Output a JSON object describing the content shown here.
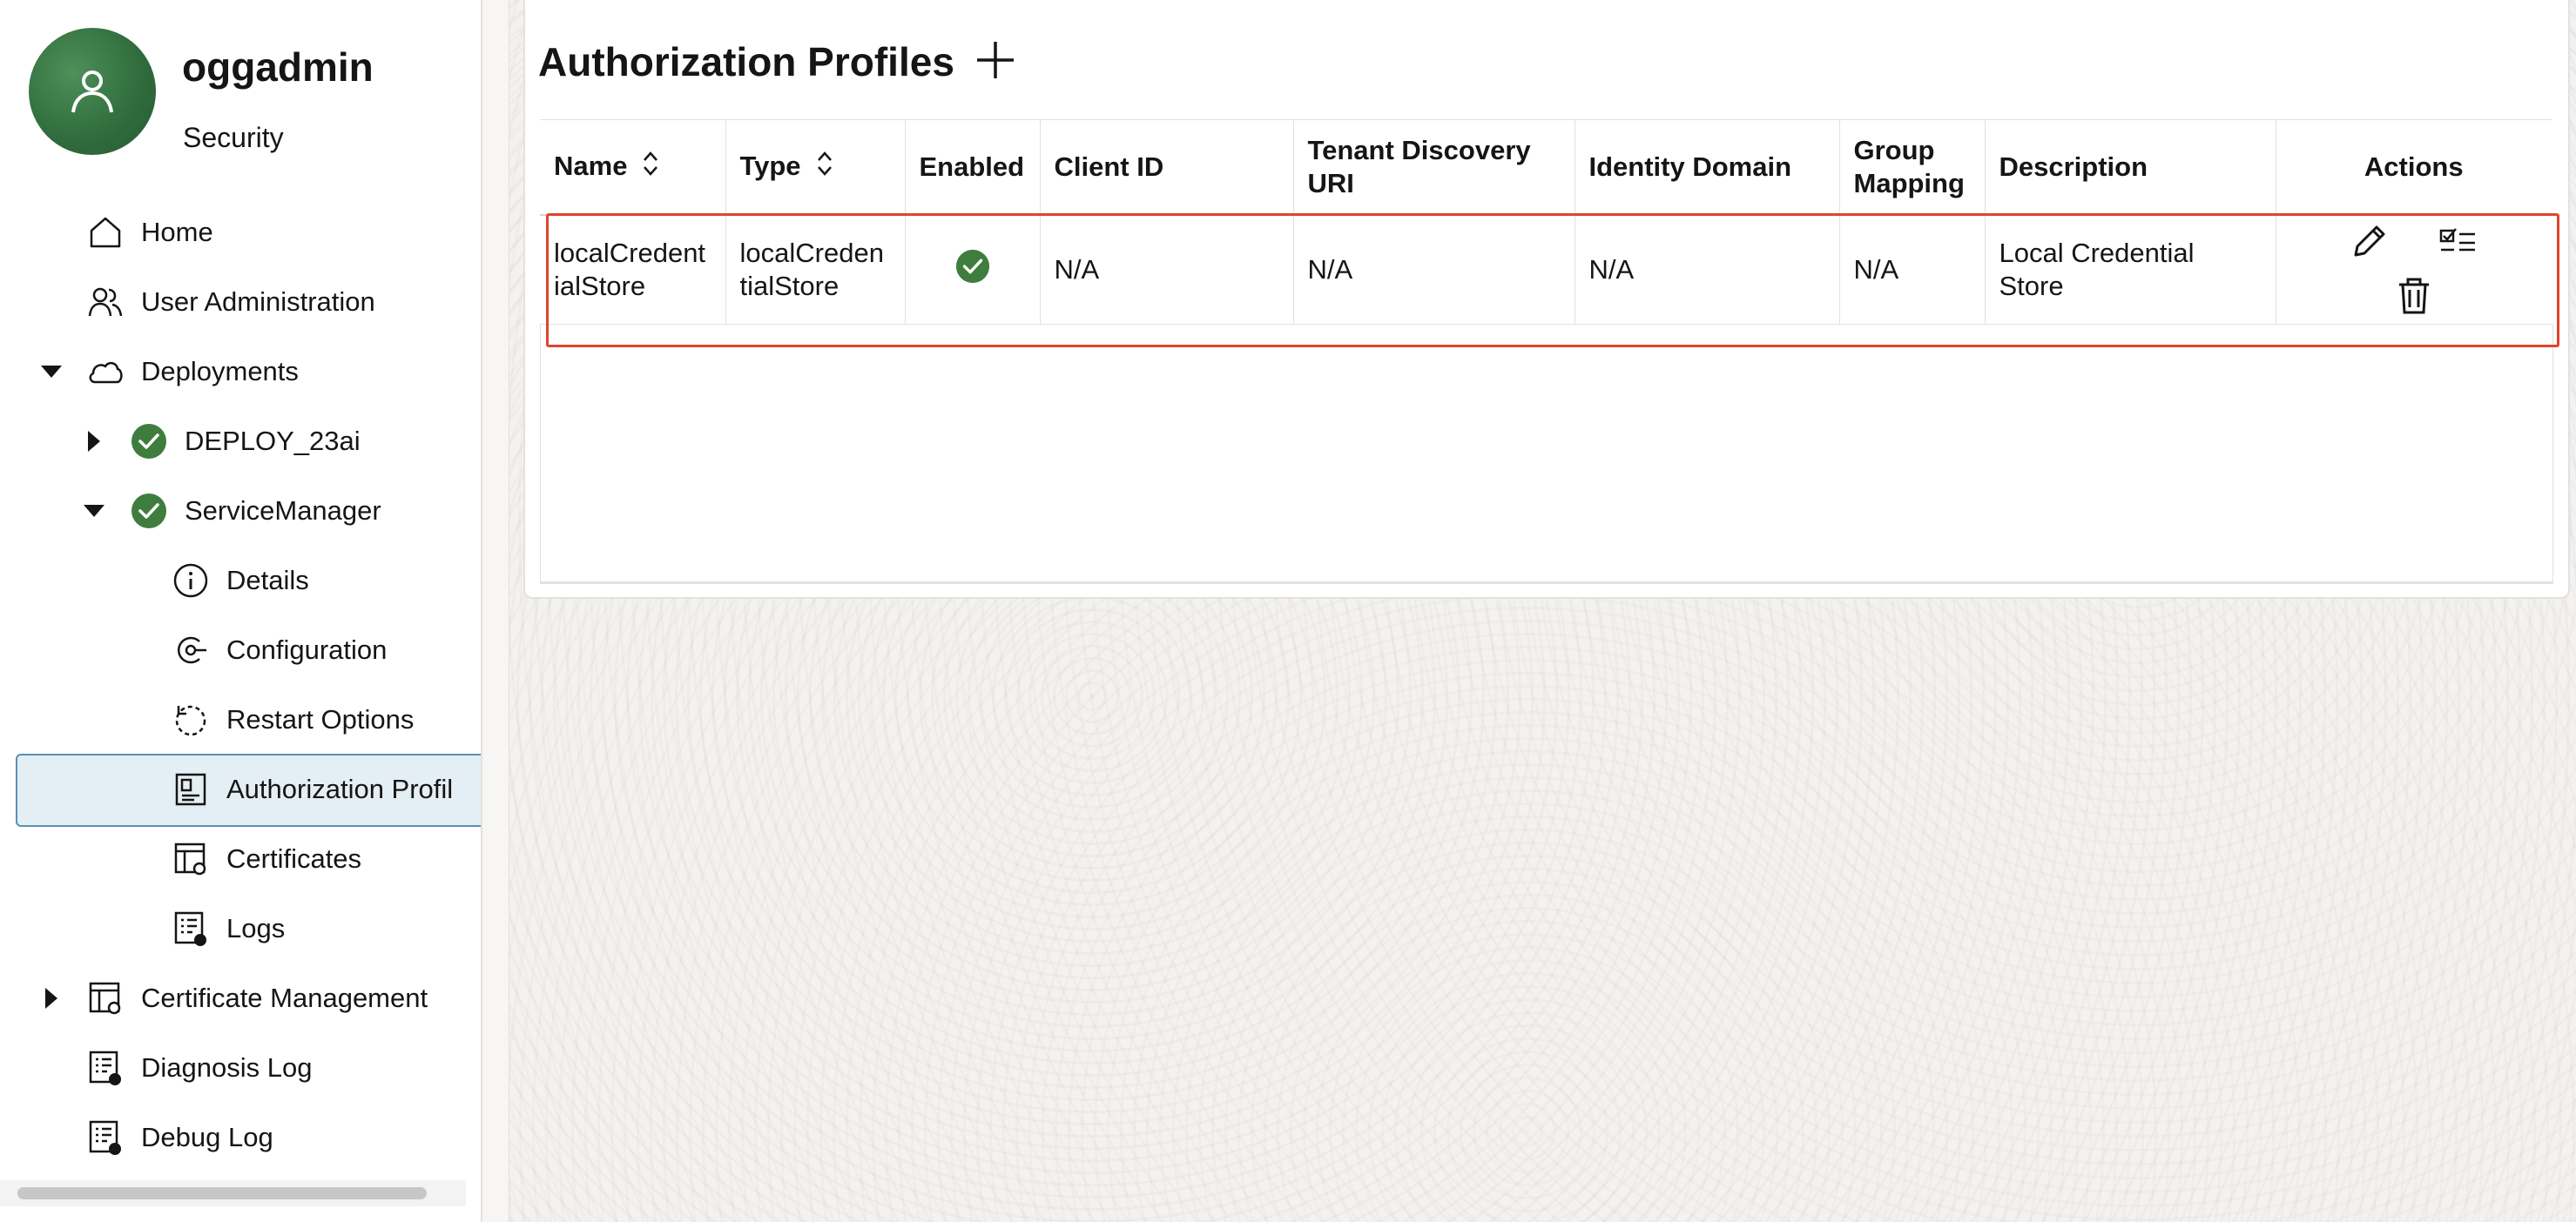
{
  "sidebar": {
    "user": {
      "name": "oggadmin",
      "role": "Security"
    },
    "items": [
      {
        "label": "Home",
        "icon": "home-icon"
      },
      {
        "label": "User Administration",
        "icon": "users-icon"
      },
      {
        "label": "Deployments",
        "icon": "cloud-icon"
      },
      {
        "label": "DEPLOY_23ai",
        "icon": "check-circle-icon"
      },
      {
        "label": "ServiceManager",
        "icon": "check-circle-icon"
      },
      {
        "label": "Details",
        "icon": "info-icon"
      },
      {
        "label": "Configuration",
        "icon": "configuration-icon"
      },
      {
        "label": "Restart Options",
        "icon": "restart-icon"
      },
      {
        "label": "Authorization Profil",
        "icon": "authorization-icon"
      },
      {
        "label": "Certificates",
        "icon": "certificate-icon"
      },
      {
        "label": "Logs",
        "icon": "log-icon"
      },
      {
        "label": "Certificate Management",
        "icon": "certificate-icon"
      },
      {
        "label": "Diagnosis Log",
        "icon": "log-icon"
      },
      {
        "label": "Debug Log",
        "icon": "log-icon"
      }
    ]
  },
  "main": {
    "title": "Authorization Profiles",
    "table": {
      "columns": [
        "Name",
        "Type",
        "Enabled",
        "Client ID",
        "Tenant Discovery URI",
        "Identity Domain",
        "Group Mapping",
        "Description",
        "Actions"
      ],
      "rows": [
        {
          "name": "localCredentialStore",
          "type": "localCredentialStore",
          "enabled": "true",
          "client_id": "N/A",
          "tenant_discovery_uri": "N/A",
          "identity_domain": "N/A",
          "group_mapping": "N/A",
          "description": "Local Credential Store"
        }
      ]
    }
  },
  "colors": {
    "accent_green": "#3f7d3f",
    "highlight_red": "#e0442d",
    "selected_bg": "#e4eef5",
    "selected_border": "#5c8fb4"
  }
}
